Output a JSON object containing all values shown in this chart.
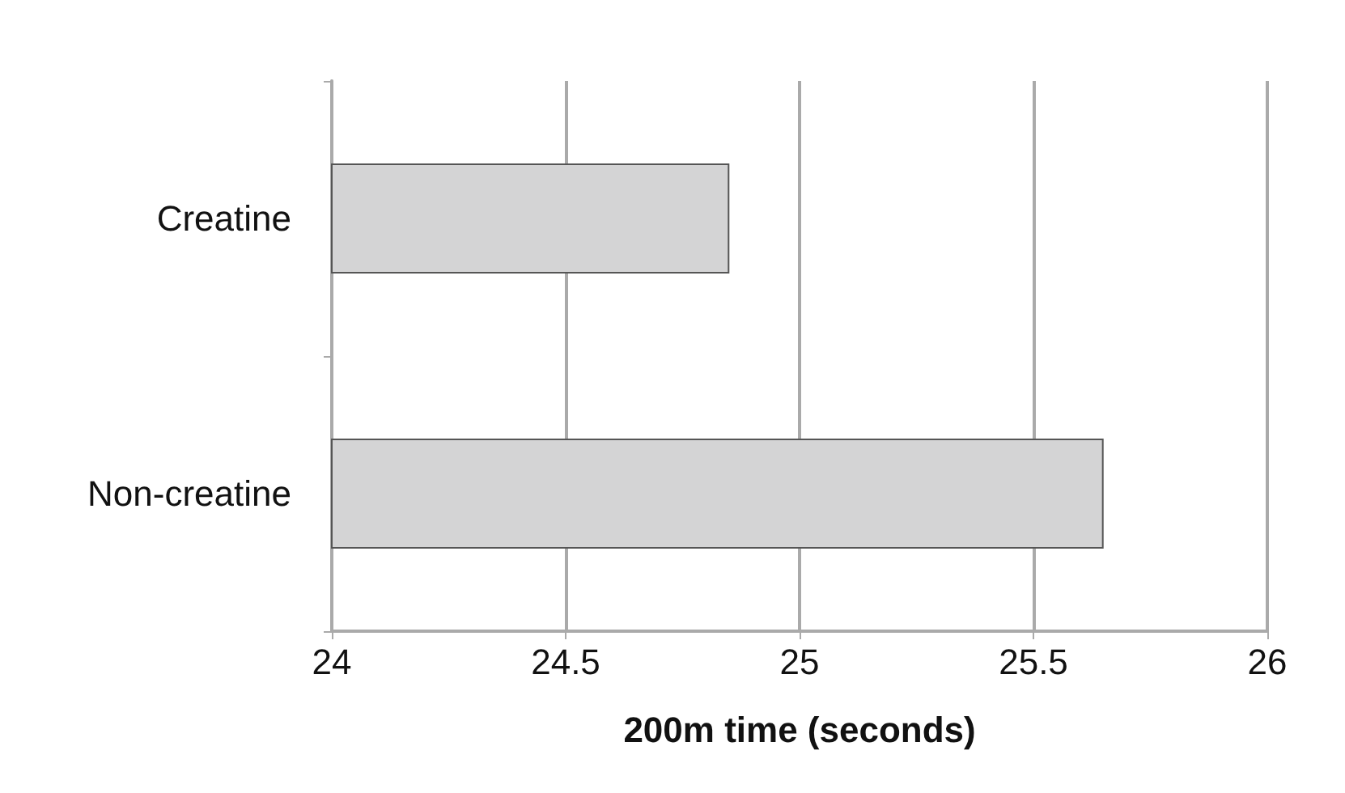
{
  "chart_data": {
    "type": "bar",
    "orientation": "horizontal",
    "xlabel": "200m time (seconds)",
    "categories": [
      "Creatine",
      "Non-creatine"
    ],
    "values": [
      24.85,
      25.65
    ],
    "color": "#d4d4d5",
    "xlim": [
      24,
      26
    ],
    "xticks": [
      24,
      24.5,
      25,
      25.5,
      26
    ],
    "grid": "x"
  }
}
